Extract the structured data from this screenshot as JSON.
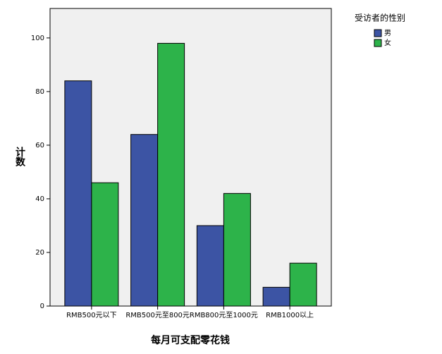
{
  "chart_data": {
    "type": "bar",
    "x_label": "每月可支配零花钱",
    "y_label": "计数",
    "legend_title": "受访者的性别",
    "categories": [
      "RMB500元以下",
      "RMB500元至800元",
      "RMB800元至1000元",
      "RMB1000以上"
    ],
    "series": [
      {
        "name": "男",
        "color": "#3c54a4",
        "values": [
          84,
          64,
          30,
          7
        ]
      },
      {
        "name": "女",
        "color": "#2db34a",
        "values": [
          46,
          98,
          42,
          16
        ]
      }
    ],
    "ylim": [
      0,
      111
    ],
    "yticks": [
      0,
      20,
      40,
      60,
      80,
      100
    ],
    "grid": false,
    "legend": "right"
  }
}
